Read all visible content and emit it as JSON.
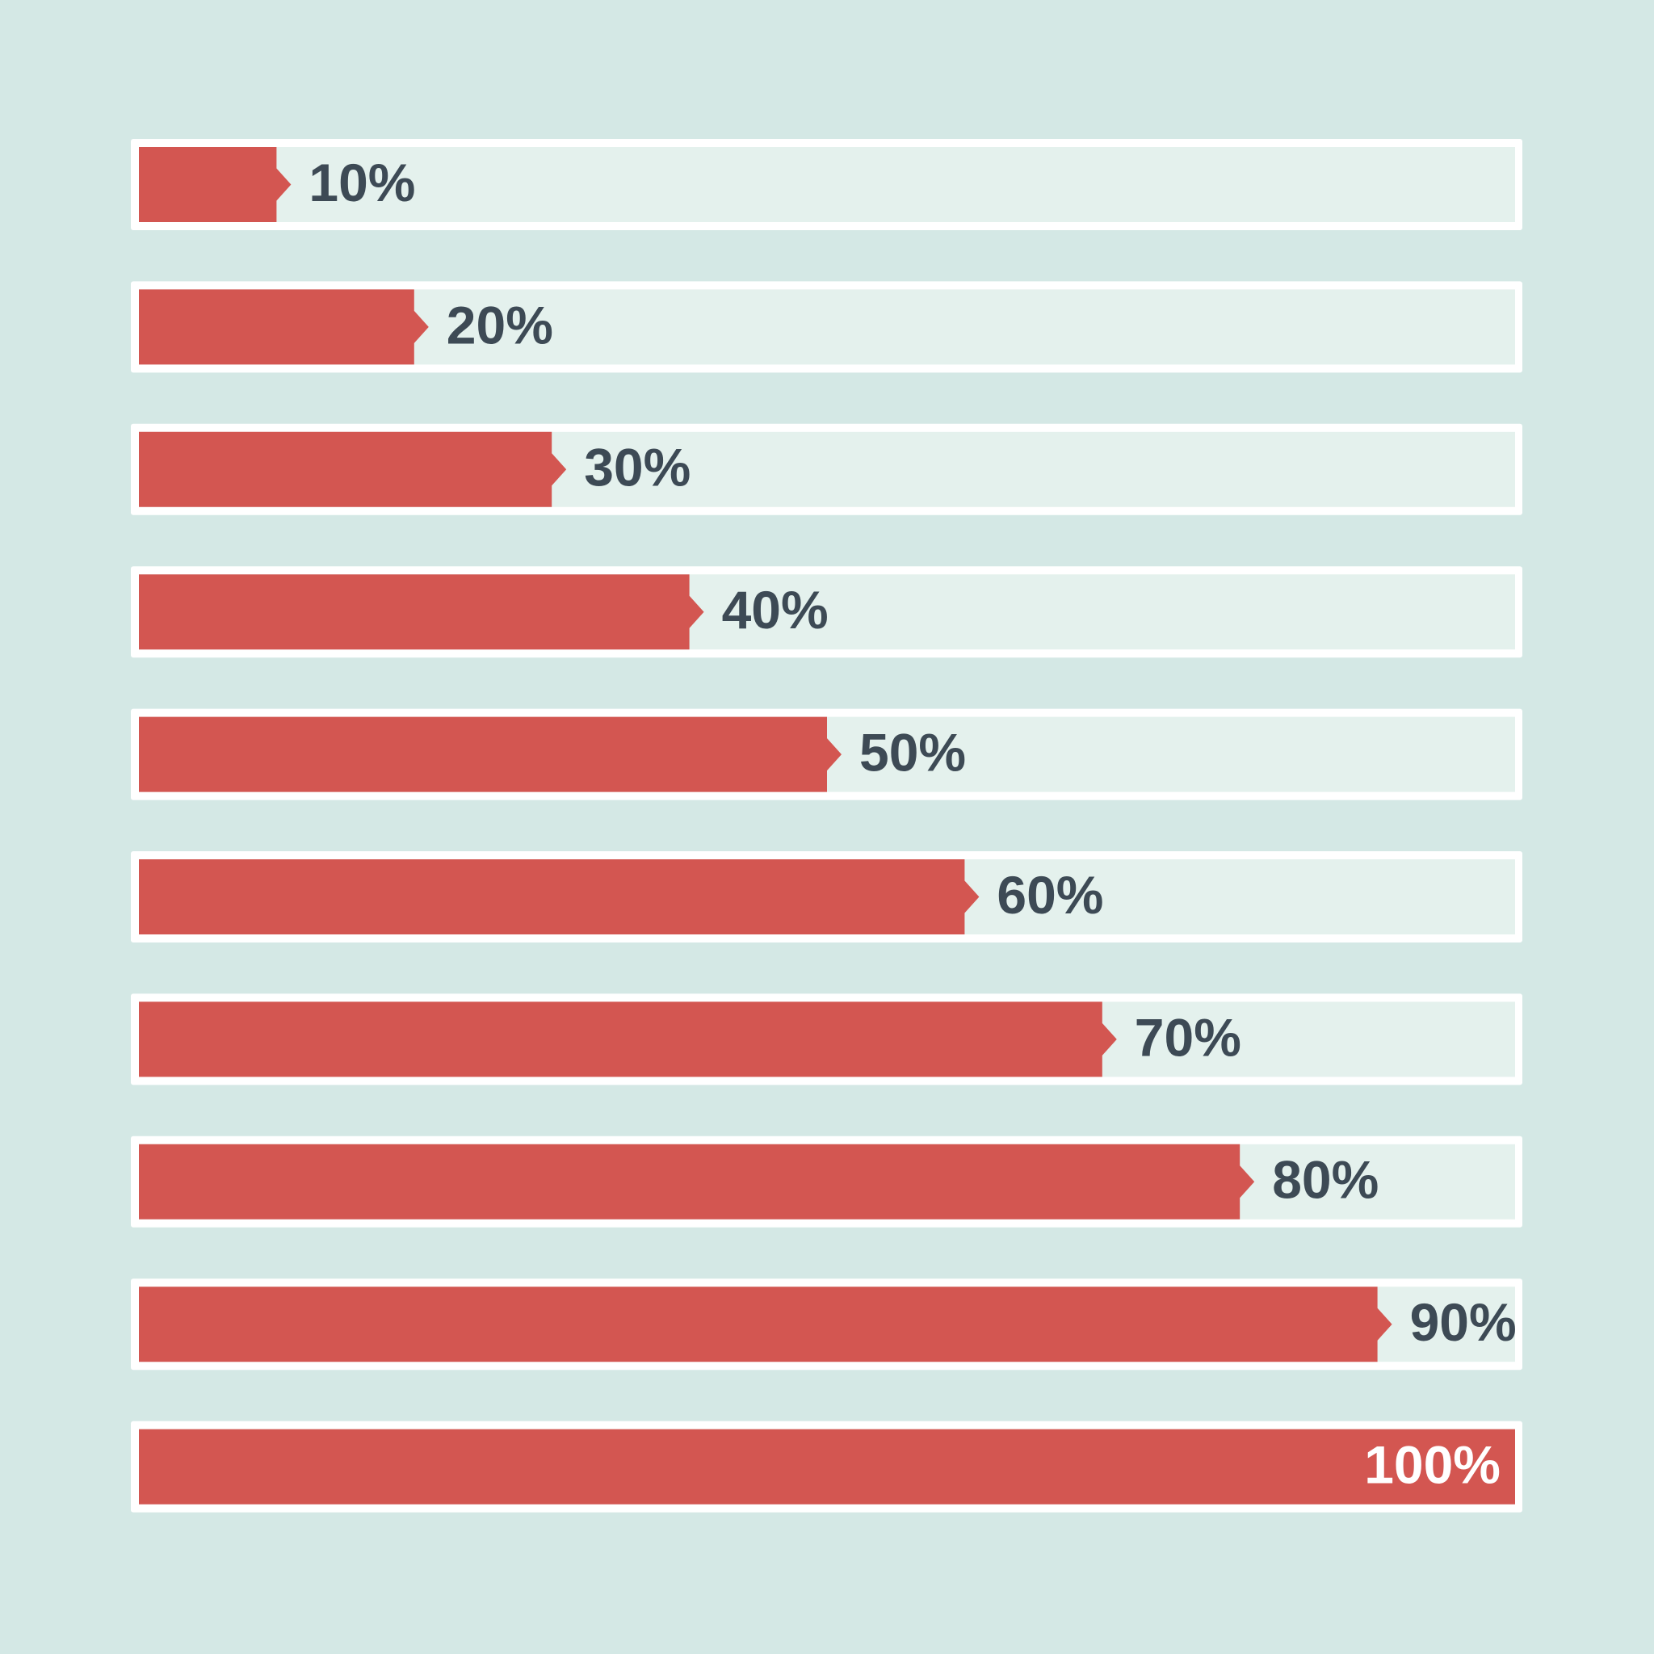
{
  "chart_data": {
    "type": "progress",
    "values": [
      10,
      20,
      30,
      40,
      50,
      60,
      70,
      80,
      90,
      100
    ],
    "value_labels": [
      "10%",
      "20%",
      "30%",
      "40%",
      "50%",
      "60%",
      "70%",
      "80%",
      "90%",
      "100%"
    ],
    "xlim": [
      0,
      100
    ],
    "color": "#d35651"
  }
}
